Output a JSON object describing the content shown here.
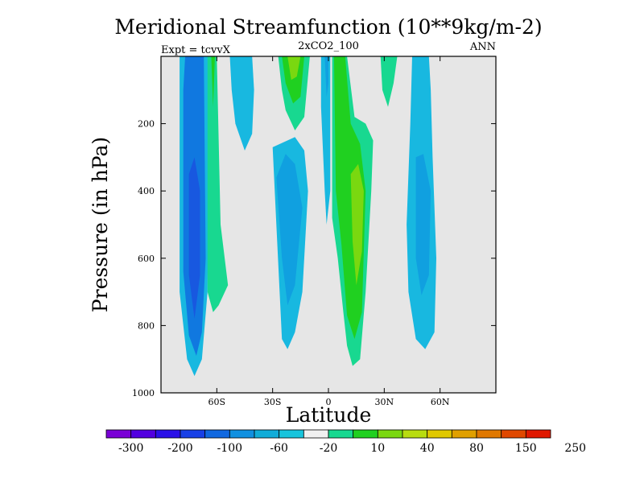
{
  "chart_data": {
    "type": "heatmap",
    "title": "Meridional Streamfunction (10**9kg/m-2)",
    "subtitle_center": "2xCO2_100",
    "subtitle_left": "Expt = tcvvX",
    "subtitle_right": "ANN",
    "xlabel": "Latitude",
    "ylabel": "Pressure (in hPa)",
    "xlim": [
      -90,
      90
    ],
    "ylim": [
      1000,
      0
    ],
    "x_ticks": [
      {
        "value": -60,
        "label": "60S"
      },
      {
        "value": -30,
        "label": "30S"
      },
      {
        "value": 0,
        "label": "0"
      },
      {
        "value": 30,
        "label": "30N"
      },
      {
        "value": 60,
        "label": "60N"
      }
    ],
    "y_ticks": [
      {
        "value": 200,
        "label": "200"
      },
      {
        "value": 400,
        "label": "400"
      },
      {
        "value": 600,
        "label": "600"
      },
      {
        "value": 800,
        "label": "800"
      },
      {
        "value": 1000,
        "label": "1000"
      }
    ],
    "background_color": "#e6e6e6",
    "colorbar": {
      "colors": [
        "#7a00d6",
        "#5200e0",
        "#2a10e8",
        "#1840e6",
        "#1068e0",
        "#1090e0",
        "#10acd8",
        "#18c4dc",
        "#f0f0f0",
        "#18d890",
        "#20d020",
        "#7ad810",
        "#b8dc10",
        "#e0c800",
        "#e0a000",
        "#e07800",
        "#e04800",
        "#e01800"
      ],
      "labels": [
        "-300",
        "-200",
        "-100",
        "-60",
        "-20",
        "10",
        "40",
        "80",
        "150",
        "250"
      ]
    },
    "contour_regions": [
      {
        "color": "#18b8e0",
        "level": -20,
        "points": [
          [
            -80,
            180
          ],
          [
            -80,
            700
          ],
          [
            -76,
            900
          ],
          [
            -72,
            950
          ],
          [
            -68,
            900
          ],
          [
            -65,
            700
          ],
          [
            -64,
            0
          ],
          [
            -80,
            0
          ]
        ]
      },
      {
        "color": "#1078e0",
        "level": -60,
        "points": [
          [
            -78,
            100
          ],
          [
            -78,
            640
          ],
          [
            -75,
            830
          ],
          [
            -71,
            890
          ],
          [
            -68,
            820
          ],
          [
            -66,
            600
          ],
          [
            -67,
            0
          ],
          [
            -77,
            0
          ]
        ]
      },
      {
        "color": "#1858e0",
        "level": -100,
        "points": [
          [
            -75,
            350
          ],
          [
            -75,
            650
          ],
          [
            -72,
            780
          ],
          [
            -69,
            650
          ],
          [
            -69,
            400
          ],
          [
            -72,
            300
          ]
        ]
      },
      {
        "color": "#18d890",
        "level": 10,
        "points": [
          [
            -65,
            0
          ],
          [
            -65,
            700
          ],
          [
            -62,
            760
          ],
          [
            -59,
            740
          ],
          [
            -54,
            680
          ],
          [
            -58,
            500
          ],
          [
            -60,
            0
          ]
        ]
      },
      {
        "color": "#20d020",
        "level": 40,
        "points": [
          [
            -63,
            0
          ],
          [
            -62,
            150
          ],
          [
            -61,
            0
          ]
        ]
      },
      {
        "color": "#18b8e0",
        "level": -20,
        "points": [
          [
            -53,
            0
          ],
          [
            -52,
            100
          ],
          [
            -50,
            200
          ],
          [
            -45,
            280
          ],
          [
            -41,
            230
          ],
          [
            -40,
            100
          ],
          [
            -41,
            0
          ]
        ]
      },
      {
        "color": "#18b8e0",
        "level": -20,
        "points": [
          [
            -30,
            270
          ],
          [
            -28,
            500
          ],
          [
            -25,
            840
          ],
          [
            -22,
            870
          ],
          [
            -18,
            820
          ],
          [
            -14,
            700
          ],
          [
            -11,
            400
          ],
          [
            -13,
            280
          ],
          [
            -18,
            240
          ]
        ]
      },
      {
        "color": "#10a0e0",
        "level": -20,
        "points": [
          [
            -28,
            360
          ],
          [
            -25,
            600
          ],
          [
            -22,
            740
          ],
          [
            -18,
            680
          ],
          [
            -14,
            450
          ],
          [
            -18,
            320
          ],
          [
            -23,
            290
          ]
        ]
      },
      {
        "color": "#18d890",
        "level": 10,
        "points": [
          [
            -27,
            0
          ],
          [
            -25,
            100
          ],
          [
            -23,
            160
          ],
          [
            -18,
            220
          ],
          [
            -13,
            180
          ],
          [
            -10,
            0
          ]
        ]
      },
      {
        "color": "#20d020",
        "level": 40,
        "points": [
          [
            -25,
            0
          ],
          [
            -23,
            80
          ],
          [
            -19,
            140
          ],
          [
            -15,
            120
          ],
          [
            -13,
            0
          ]
        ]
      },
      {
        "color": "#7ad810",
        "level": 80,
        "points": [
          [
            -22,
            0
          ],
          [
            -20,
            70
          ],
          [
            -17,
            60
          ],
          [
            -15,
            0
          ]
        ]
      },
      {
        "color": "#18b8e0",
        "level": -20,
        "points": [
          [
            -4,
            0
          ],
          [
            -4,
            150
          ],
          [
            -2,
            400
          ],
          [
            -1,
            500
          ],
          [
            1,
            400
          ],
          [
            1,
            0
          ]
        ]
      },
      {
        "color": "#10a0e0",
        "level": -60,
        "points": [
          [
            -2,
            0
          ],
          [
            -1,
            120
          ],
          [
            0,
            80
          ],
          [
            0,
            0
          ]
        ]
      },
      {
        "color": "#18d890",
        "level": 10,
        "points": [
          [
            2,
            0
          ],
          [
            2,
            480
          ],
          [
            5,
            600
          ],
          [
            8,
            760
          ],
          [
            10,
            860
          ],
          [
            13,
            920
          ],
          [
            17,
            900
          ],
          [
            20,
            700
          ],
          [
            23,
            400
          ],
          [
            24,
            250
          ],
          [
            20,
            200
          ],
          [
            14,
            180
          ],
          [
            10,
            0
          ]
        ]
      },
      {
        "color": "#20d020",
        "level": 40,
        "points": [
          [
            3,
            0
          ],
          [
            4,
            400
          ],
          [
            7,
            560
          ],
          [
            10,
            770
          ],
          [
            14,
            840
          ],
          [
            18,
            760
          ],
          [
            20,
            400
          ],
          [
            17,
            260
          ],
          [
            12,
            200
          ],
          [
            9,
            0
          ]
        ]
      },
      {
        "color": "#7ad810",
        "level": 80,
        "points": [
          [
            12,
            350
          ],
          [
            13,
            550
          ],
          [
            15,
            680
          ],
          [
            18,
            580
          ],
          [
            19,
            400
          ],
          [
            16,
            320
          ]
        ]
      },
      {
        "color": "#18d890",
        "level": 10,
        "points": [
          [
            28,
            0
          ],
          [
            29,
            100
          ],
          [
            32,
            150
          ],
          [
            35,
            80
          ],
          [
            37,
            0
          ]
        ]
      },
      {
        "color": "#18b8e0",
        "level": -20,
        "points": [
          [
            45,
            0
          ],
          [
            44,
            200
          ],
          [
            42,
            500
          ],
          [
            43,
            700
          ],
          [
            47,
            840
          ],
          [
            52,
            870
          ],
          [
            57,
            820
          ],
          [
            58,
            600
          ],
          [
            56,
            300
          ],
          [
            55,
            100
          ],
          [
            54,
            0
          ]
        ]
      },
      {
        "color": "#10a0e0",
        "level": -60,
        "points": [
          [
            47,
            300
          ],
          [
            47,
            600
          ],
          [
            50,
            710
          ],
          [
            54,
            650
          ],
          [
            55,
            400
          ],
          [
            51,
            290
          ]
        ]
      }
    ]
  }
}
